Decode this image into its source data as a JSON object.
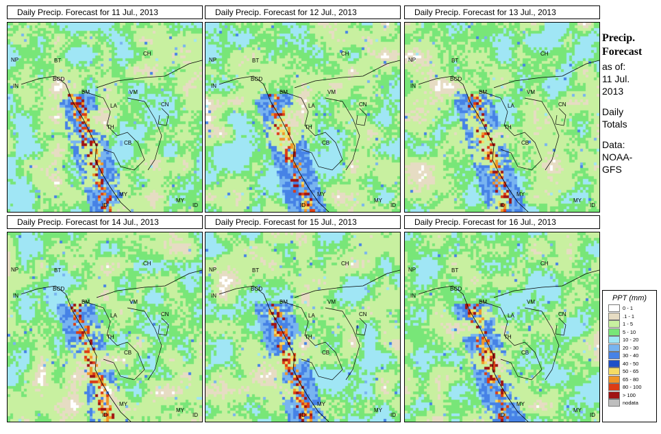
{
  "panels": [
    {
      "title": "Daily Precip. Forecast for  11 Jul., 2013",
      "seed": 11
    },
    {
      "title": "Daily Precip. Forecast for  12 Jul., 2013",
      "seed": 12
    },
    {
      "title": "Daily Precip. Forecast for  13 Jul., 2013",
      "seed": 13
    },
    {
      "title": "Daily Precip. Forecast for  14 Jul., 2013",
      "seed": 14
    },
    {
      "title": "Daily Precip. Forecast for  15 Jul., 2013",
      "seed": 15
    },
    {
      "title": "Daily Precip. Forecast for  16 Jul., 2013",
      "seed": 16
    }
  ],
  "map_labels": [
    "NP",
    "BT",
    "BGD",
    "IN",
    "CH",
    "BM",
    "VM",
    "LA",
    "CN",
    "TH",
    "CB",
    "MY",
    "MY",
    "ID",
    "ID"
  ],
  "side": {
    "heading_line1": "Precip.",
    "heading_line2": "Forecast",
    "asof_line1": "as of:",
    "asof_line2": "11 Jul.",
    "asof_line3": "2013",
    "daily_line1": "Daily",
    "daily_line2": "Totals",
    "data_line1": "Data:",
    "data_line2": "NOAA-",
    "data_line3": "GFS"
  },
  "legend": {
    "title": "PPT (mm)",
    "classes": [
      {
        "label": "0 - 1",
        "color": "#ffffff"
      },
      {
        "label": ".1 - 1",
        "color": "#e6dcc3"
      },
      {
        "label": "1 - 5",
        "color": "#c8f0a0"
      },
      {
        "label": "5 - 10",
        "color": "#78e678"
      },
      {
        "label": "10 - 20",
        "color": "#a0e6f5"
      },
      {
        "label": "20 - 30",
        "color": "#78b4f0"
      },
      {
        "label": "30 - 40",
        "color": "#4682e6"
      },
      {
        "label": "40 - 50",
        "color": "#1e50c8"
      },
      {
        "label": "50 - 65",
        "color": "#f5dc64"
      },
      {
        "label": "65 - 80",
        "color": "#f09628"
      },
      {
        "label": "80 - 100",
        "color": "#dc3c14"
      },
      {
        "label": "> 100",
        "color": "#a01414"
      },
      {
        "label": "nodata",
        "color": "#bebebe"
      }
    ]
  }
}
